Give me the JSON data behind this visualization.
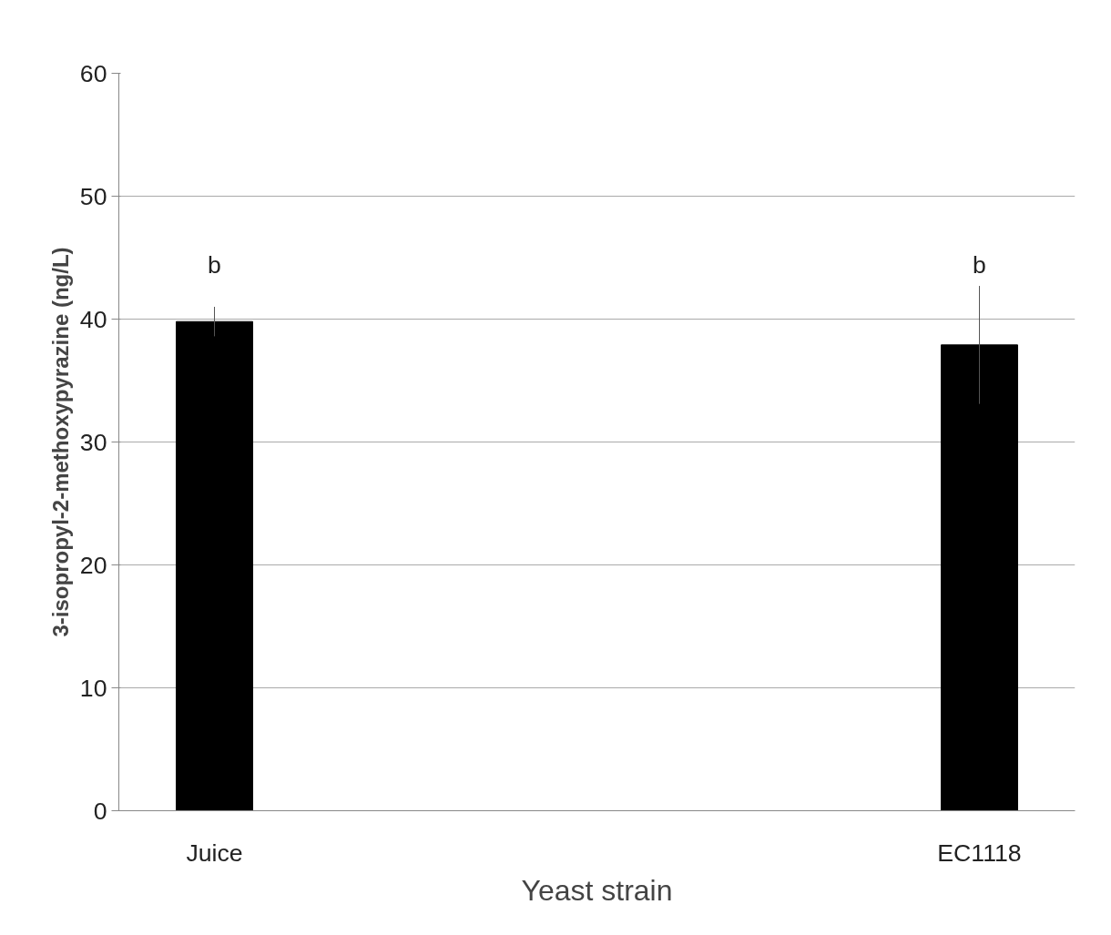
{
  "chart_data": {
    "type": "bar",
    "xlabel": "Yeast strain",
    "ylabel": "3-isopropyl-2-methoxypyrazine (ng/L)",
    "categories": [
      "Juice",
      null,
      null,
      null,
      "EC1118"
    ],
    "values": [
      39.8,
      null,
      null,
      null,
      37.9
    ],
    "errors": [
      1.2,
      null,
      null,
      null,
      4.8
    ],
    "color": "#000000",
    "ylim": [
      0,
      60
    ],
    "yticks": [
      0,
      10,
      20,
      30,
      40,
      50,
      60
    ],
    "grid": "y",
    "annotations": [
      "b",
      "b"
    ]
  }
}
